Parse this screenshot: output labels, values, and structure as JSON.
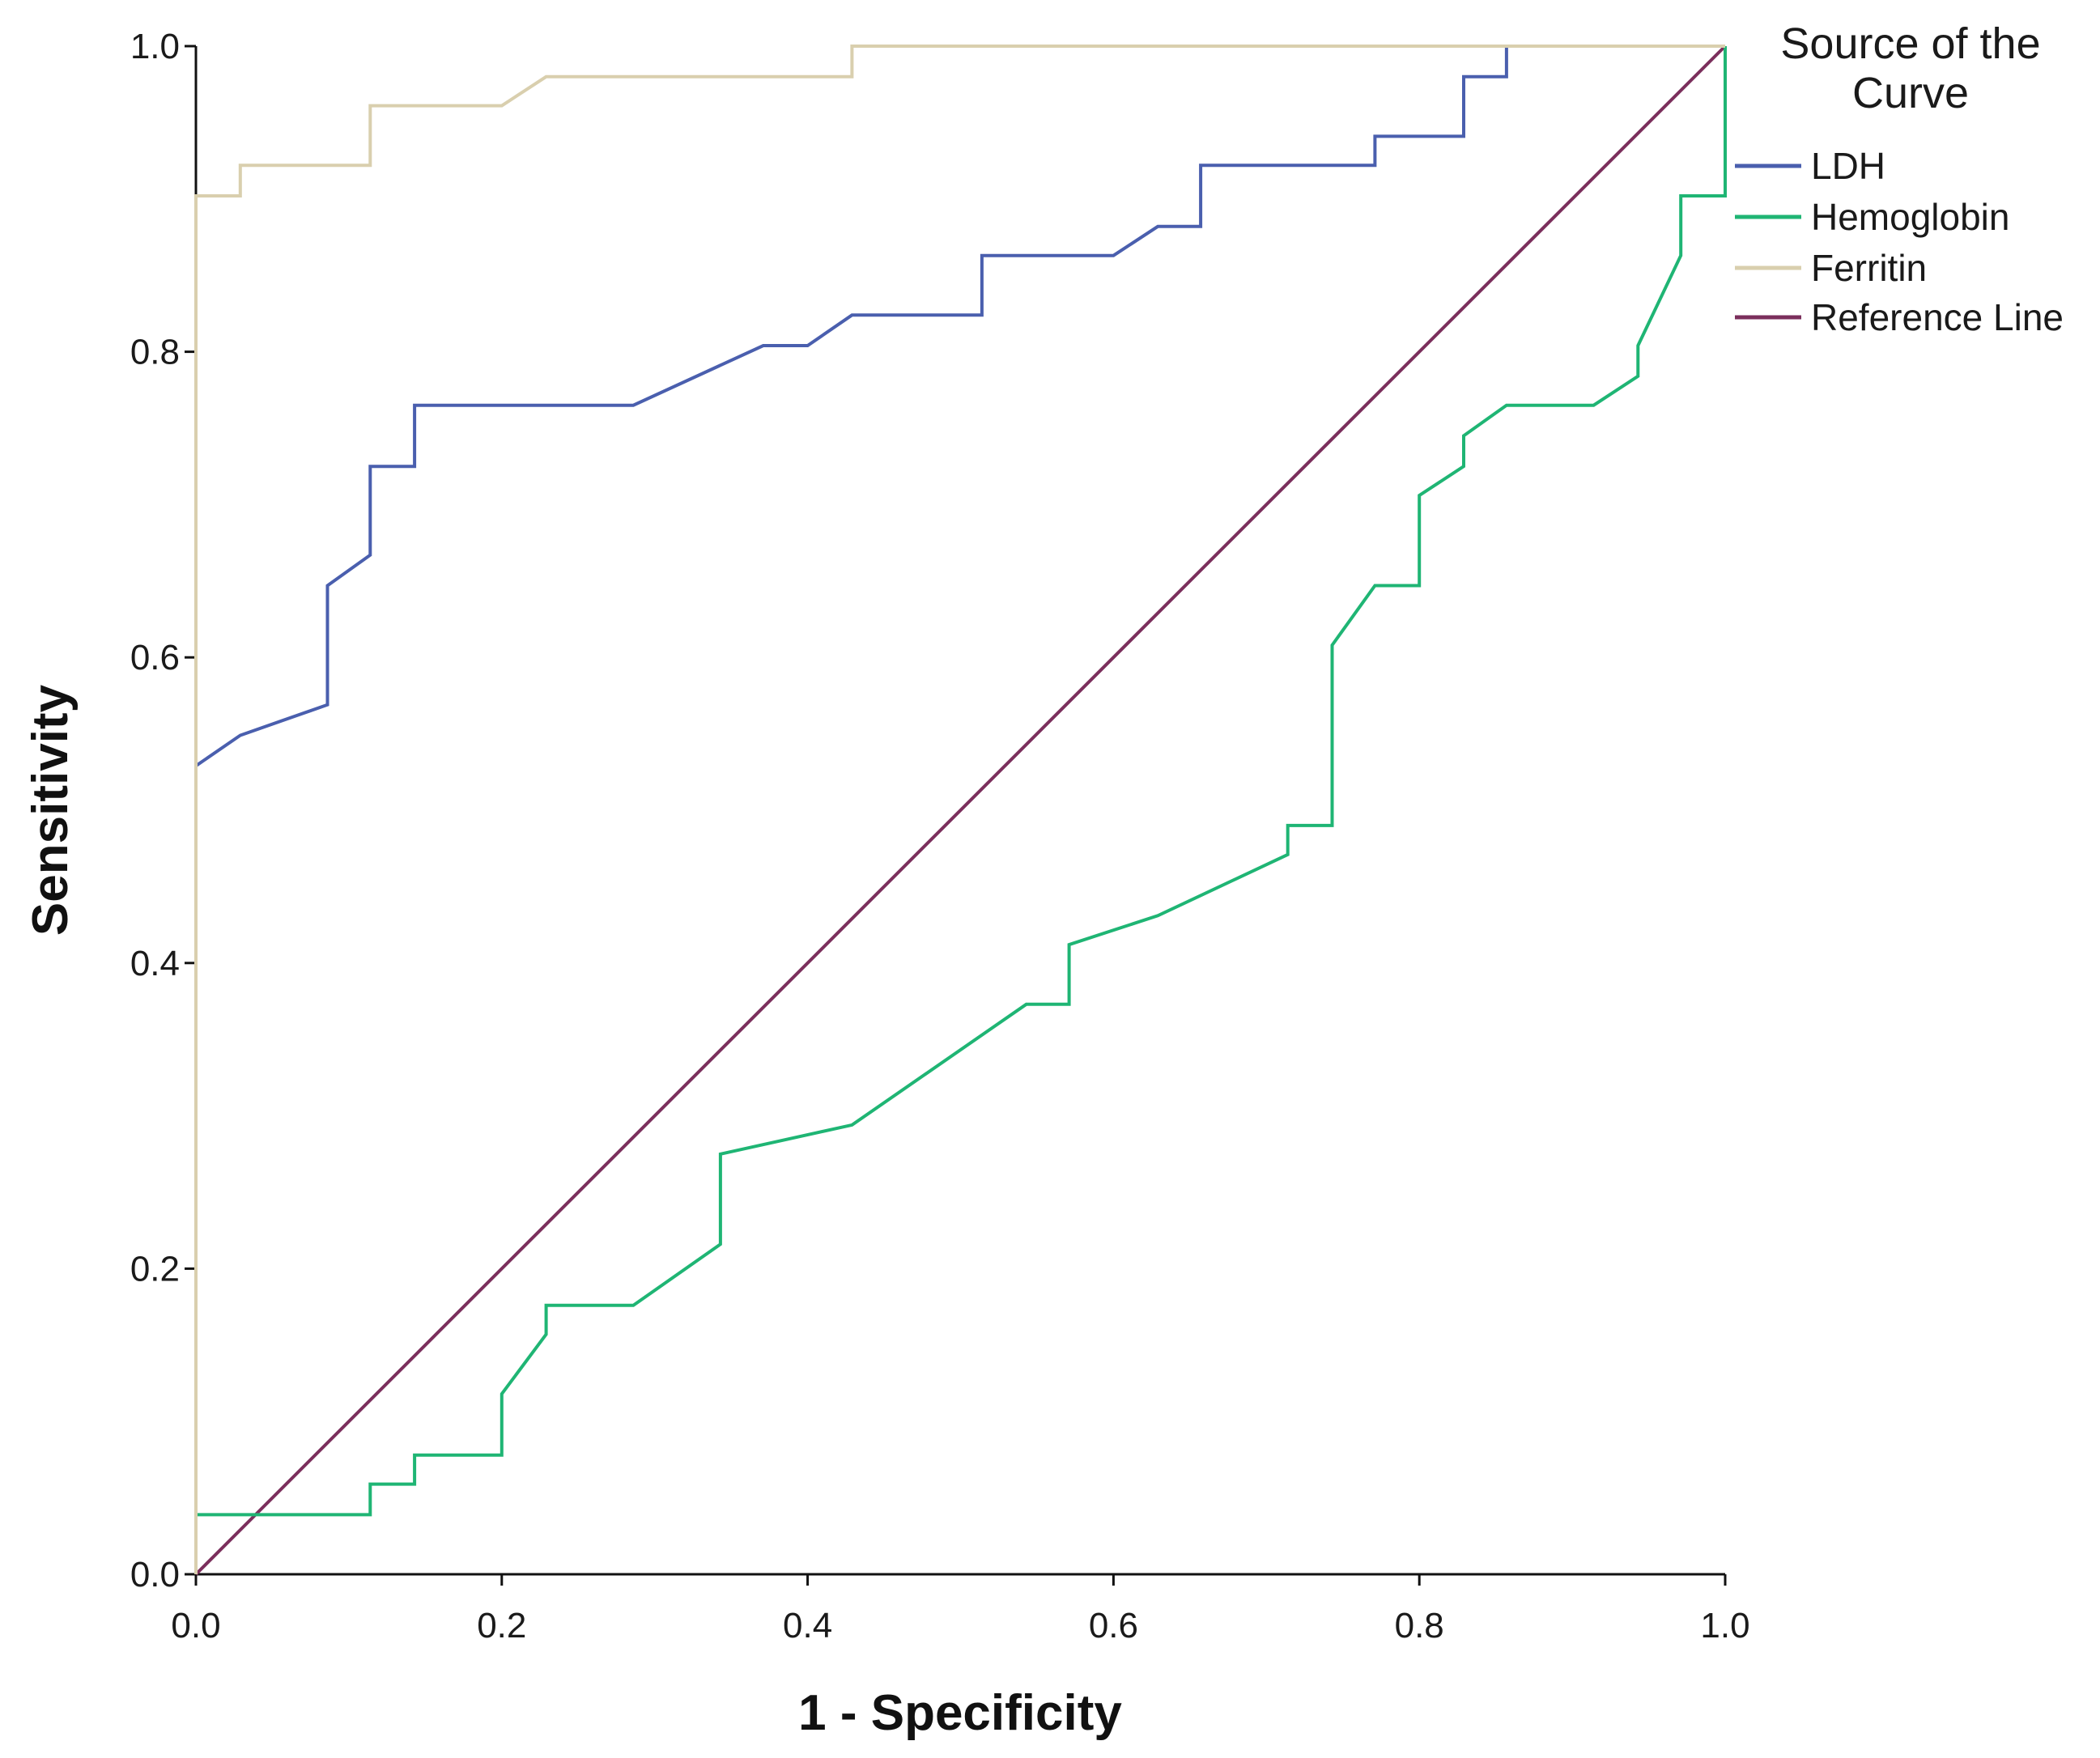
{
  "chart_data": {
    "type": "line",
    "xlabel": "1 - Specificity",
    "ylabel": "Sensitivity",
    "xlim": [
      0,
      1
    ],
    "ylim": [
      0,
      1
    ],
    "x_ticks": [
      "0.0",
      "0.2",
      "0.4",
      "0.6",
      "0.8",
      "1.0"
    ],
    "y_ticks": [
      "0.0",
      "0.2",
      "0.4",
      "0.6",
      "0.8",
      "1.0"
    ],
    "grid": false,
    "legend": {
      "title_lines": [
        "Source of the",
        "Curve"
      ],
      "placement": "right"
    },
    "series": [
      {
        "name": "LDH",
        "color": "#4a5fae",
        "points": [
          [
            0,
            0
          ],
          [
            0,
            0.529
          ],
          [
            0.029,
            0.549
          ],
          [
            0.086,
            0.569
          ],
          [
            0.086,
            0.647
          ],
          [
            0.114,
            0.667
          ],
          [
            0.114,
            0.725
          ],
          [
            0.143,
            0.725
          ],
          [
            0.143,
            0.765
          ],
          [
            0.286,
            0.765
          ],
          [
            0.371,
            0.804
          ],
          [
            0.4,
            0.804
          ],
          [
            0.429,
            0.824
          ],
          [
            0.514,
            0.824
          ],
          [
            0.514,
            0.863
          ],
          [
            0.6,
            0.863
          ],
          [
            0.629,
            0.882
          ],
          [
            0.657,
            0.882
          ],
          [
            0.657,
            0.922
          ],
          [
            0.771,
            0.922
          ],
          [
            0.771,
            0.941
          ],
          [
            0.829,
            0.941
          ],
          [
            0.829,
            0.98
          ],
          [
            0.857,
            0.98
          ],
          [
            0.857,
            1
          ],
          [
            1,
            1
          ]
        ]
      },
      {
        "name": "Hemoglobin",
        "color": "#1fb574",
        "points": [
          [
            0,
            0
          ],
          [
            0,
            0.039
          ],
          [
            0.114,
            0.039
          ],
          [
            0.114,
            0.059
          ],
          [
            0.143,
            0.059
          ],
          [
            0.143,
            0.078
          ],
          [
            0.2,
            0.078
          ],
          [
            0.2,
            0.118
          ],
          [
            0.229,
            0.157
          ],
          [
            0.229,
            0.176
          ],
          [
            0.286,
            0.176
          ],
          [
            0.343,
            0.216
          ],
          [
            0.343,
            0.275
          ],
          [
            0.429,
            0.294
          ],
          [
            0.543,
            0.373
          ],
          [
            0.571,
            0.373
          ],
          [
            0.571,
            0.412
          ],
          [
            0.629,
            0.431
          ],
          [
            0.714,
            0.471
          ],
          [
            0.714,
            0.49
          ],
          [
            0.743,
            0.49
          ],
          [
            0.743,
            0.608
          ],
          [
            0.771,
            0.647
          ],
          [
            0.8,
            0.647
          ],
          [
            0.8,
            0.706
          ],
          [
            0.829,
            0.725
          ],
          [
            0.829,
            0.745
          ],
          [
            0.857,
            0.765
          ],
          [
            0.914,
            0.765
          ],
          [
            0.943,
            0.784
          ],
          [
            0.943,
            0.804
          ],
          [
            0.971,
            0.863
          ],
          [
            0.971,
            0.902
          ],
          [
            1,
            0.902
          ],
          [
            1,
            1
          ]
        ]
      },
      {
        "name": "Ferritin",
        "color": "#d9cfae",
        "points": [
          [
            0,
            0
          ],
          [
            0,
            0.902
          ],
          [
            0.029,
            0.902
          ],
          [
            0.029,
            0.922
          ],
          [
            0.114,
            0.922
          ],
          [
            0.114,
            0.961
          ],
          [
            0.2,
            0.961
          ],
          [
            0.229,
            0.98
          ],
          [
            0.429,
            0.98
          ],
          [
            0.429,
            1
          ],
          [
            1,
            1
          ]
        ]
      },
      {
        "name": "Reference Line",
        "color": "#7b2f5c",
        "points": [
          [
            0,
            0
          ],
          [
            1,
            1
          ]
        ]
      }
    ]
  }
}
